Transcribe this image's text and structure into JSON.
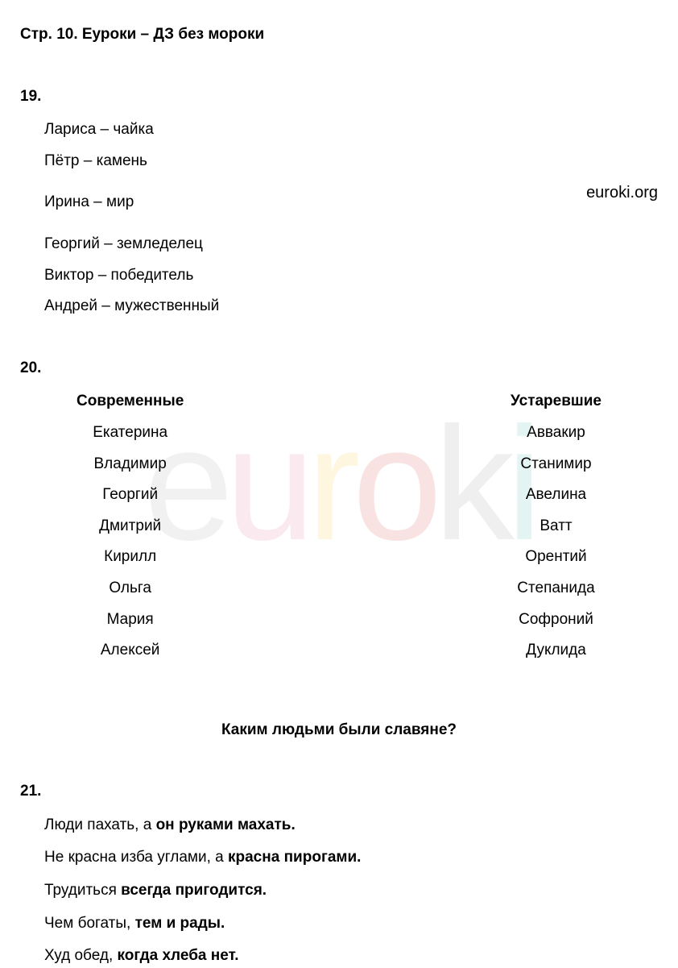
{
  "page_header": "Стр. 10. Еуроки – ДЗ без мороки",
  "url_label": "euroki.org",
  "watermark": {
    "letters": [
      "e",
      "u",
      "r",
      "o",
      "k",
      "i"
    ]
  },
  "exercise_19": {
    "number": "19.",
    "items": [
      "Лариса – чайка",
      "Пётр – камень",
      "Ирина – мир",
      "Георгий – земледелец",
      "Виктор – победитель",
      "Андрей – мужественный"
    ]
  },
  "exercise_20": {
    "number": "20.",
    "column1_header": "Современные",
    "column1_items": [
      "Екатерина",
      "Владимир",
      "Георгий",
      "Дмитрий",
      "Кирилл",
      "Ольга",
      "Мария",
      "Алексей"
    ],
    "column2_header": "Устаревшие",
    "column2_items": [
      "Аввакир",
      "Станимир",
      "Авелина",
      "Ватт",
      "Орентий",
      "Степанида",
      "Софроний",
      "Дуклида"
    ]
  },
  "section_title": "Каким людьми были славяне?",
  "exercise_21": {
    "number": "21.",
    "items": [
      {
        "prefix": "Люди пахать, а ",
        "bold": "он руками махать."
      },
      {
        "prefix": "Не красна изба углами, а ",
        "bold": "красна пирогами."
      },
      {
        "prefix": "Трудиться ",
        "bold": "всегда пригодится."
      },
      {
        "prefix": "Чем богаты, ",
        "bold": "тем и рады."
      },
      {
        "prefix": "Худ обед, ",
        "bold": "когда хлеба нет."
      }
    ]
  },
  "colors": {
    "text": "#000000",
    "background": "#ffffff"
  },
  "typography": {
    "body_fontsize": 19,
    "header_fontsize": 19,
    "font_family": "Arial"
  }
}
